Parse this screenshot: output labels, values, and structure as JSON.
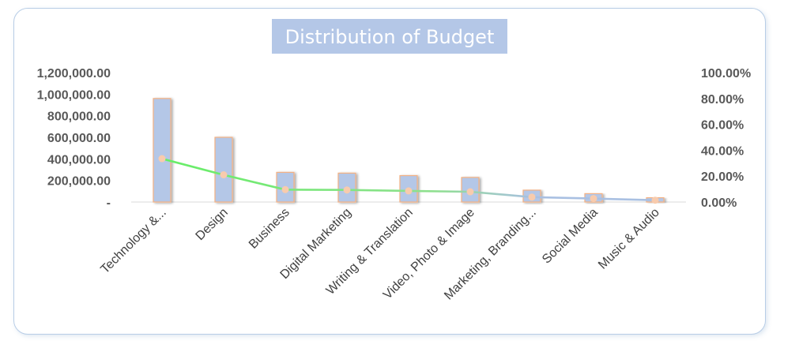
{
  "chart_data": {
    "type": "bar",
    "title": "Distribution of Budget",
    "categories": [
      "Technology &...",
      "Design",
      "Business",
      "Digital Marketing",
      "Writing & Translation",
      "Video, Photo & Image",
      "Marketing, Branding...",
      "Social Media",
      "Music & Audio"
    ],
    "series": [
      {
        "type": "bar",
        "axis": "left",
        "values": [
          960000,
          600000,
          275000,
          268000,
          245000,
          228000,
          110000,
          78000,
          40000
        ]
      },
      {
        "type": "line",
        "axis": "right",
        "values": [
          33.5,
          21,
          9.6,
          9.3,
          8.6,
          7.9,
          3.8,
          2.7,
          1.4
        ]
      }
    ],
    "y_left": {
      "min": 0,
      "max": 1200000,
      "tick_values": [
        0,
        200000,
        400000,
        600000,
        800000,
        1000000,
        1200000
      ],
      "tick_labels": [
        "-",
        "200,000.00",
        "400,000.00",
        "600,000.00",
        "800,000.00",
        "1,000,000.00",
        "1,200,000.00"
      ]
    },
    "y_right": {
      "min": 0,
      "max": 100,
      "tick_values": [
        0,
        20,
        40,
        60,
        80,
        100
      ],
      "tick_labels": [
        "0.00%",
        "20.00%",
        "40.00%",
        "60.00%",
        "80.00%",
        "100.00%"
      ]
    },
    "grid": false,
    "legend": "none"
  },
  "colors": {
    "bar_fill": "#b4c7e7",
    "bar_border": "#f4b183",
    "marker": "#f8cbad",
    "line_start": "#66ee66",
    "line_end": "#a9c0e2",
    "title_bg": "#b4c7e7",
    "card_border": "#b8cde6"
  }
}
